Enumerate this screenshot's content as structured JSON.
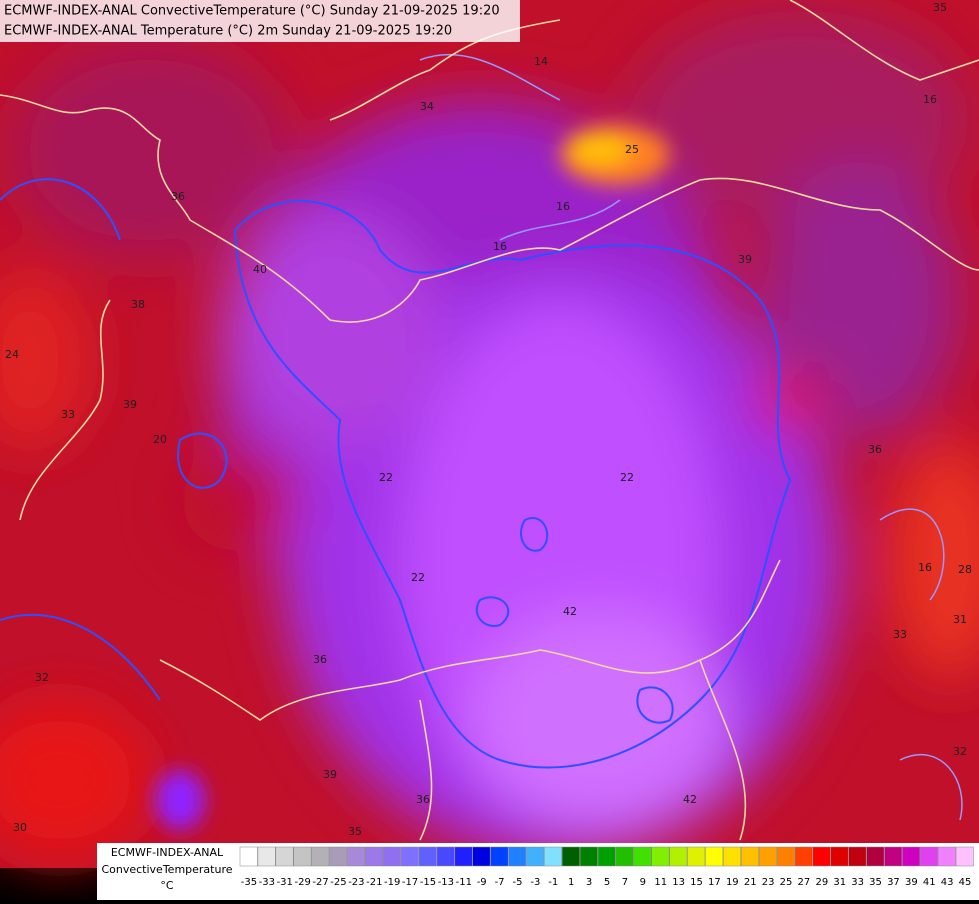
{
  "header": {
    "lines": [
      "ECMWF-INDEX-ANAL ConvectiveTemperature (°C) Sunday 21-09-2025 19:20",
      "ECMWF-INDEX-ANAL Temperature (°C) 2m Sunday 21-09-2025 19:20"
    ]
  },
  "legend": {
    "title": [
      "ECMWF-INDEX-ANAL",
      "ConvectiveTemperature",
      "°C"
    ],
    "ticks": [
      -35,
      -33,
      -31,
      -29,
      -27,
      -25,
      -23,
      -21,
      -19,
      -17,
      -15,
      -13,
      -11,
      -9,
      -7,
      -5,
      -3,
      -1,
      1,
      3,
      5,
      7,
      9,
      11,
      13,
      15,
      17,
      19,
      21,
      23,
      25,
      27,
      29,
      31,
      33,
      35,
      37,
      39,
      41,
      43,
      45
    ],
    "colors": [
      "#ffffff",
      "#e8e8e8",
      "#d6d6d6",
      "#c4c4c4",
      "#b4b0b8",
      "#a89cb8",
      "#a888d8",
      "#9c78e8",
      "#9070f0",
      "#8070ff",
      "#6060ff",
      "#4848ff",
      "#2020ff",
      "#0000e0",
      "#0040ff",
      "#2080ff",
      "#40b0ff",
      "#80e0ff",
      "#006000",
      "#008000",
      "#00a000",
      "#20c000",
      "#40e000",
      "#80f000",
      "#b0f000",
      "#e0f000",
      "#ffff00",
      "#ffe000",
      "#ffc000",
      "#ffa000",
      "#ff8000",
      "#ff4000",
      "#ff0000",
      "#e00000",
      "#c00010",
      "#b00040",
      "#c00080",
      "#d000c0",
      "#e040f0",
      "#f080ff",
      "#ffc0ff"
    ]
  },
  "map": {
    "contour_labels": [
      "35",
      "14",
      "16",
      "34",
      "25",
      "16",
      "16",
      "36",
      "40",
      "39",
      "38",
      "33",
      "39",
      "20",
      "22",
      "22",
      "36",
      "28",
      "16",
      "31",
      "33",
      "42",
      "36",
      "42",
      "32",
      "30",
      "39",
      "36",
      "35",
      "32",
      "22",
      "24"
    ]
  }
}
